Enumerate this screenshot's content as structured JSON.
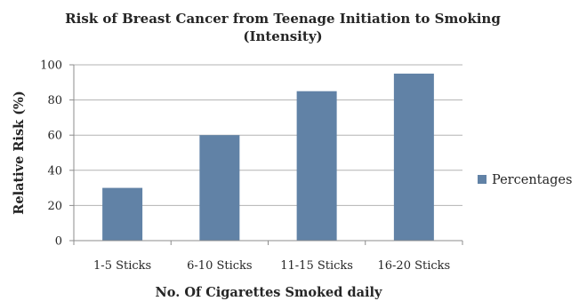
{
  "chart_data": {
    "type": "bar",
    "title": "Risk of Breast Cancer from Teenage Initiation to Smoking (Intensity)",
    "title_lines": [
      "Risk of Breast Cancer from Teenage Initiation to Smoking",
      "(Intensity)"
    ],
    "xlabel": "No. Of Cigarettes Smoked daily",
    "ylabel": "Relative Risk (%)",
    "categories": [
      "1-5 Sticks",
      "6-10 Sticks",
      "11-15 Sticks",
      "16-20 Sticks"
    ],
    "series": [
      {
        "name": "Percentages",
        "values": [
          30,
          60,
          85,
          95
        ],
        "color": "#6182a6"
      }
    ],
    "ylim": [
      0,
      100
    ],
    "yticks": [
      0,
      20,
      40,
      60,
      80,
      100
    ],
    "grid": true,
    "legend": "right"
  }
}
